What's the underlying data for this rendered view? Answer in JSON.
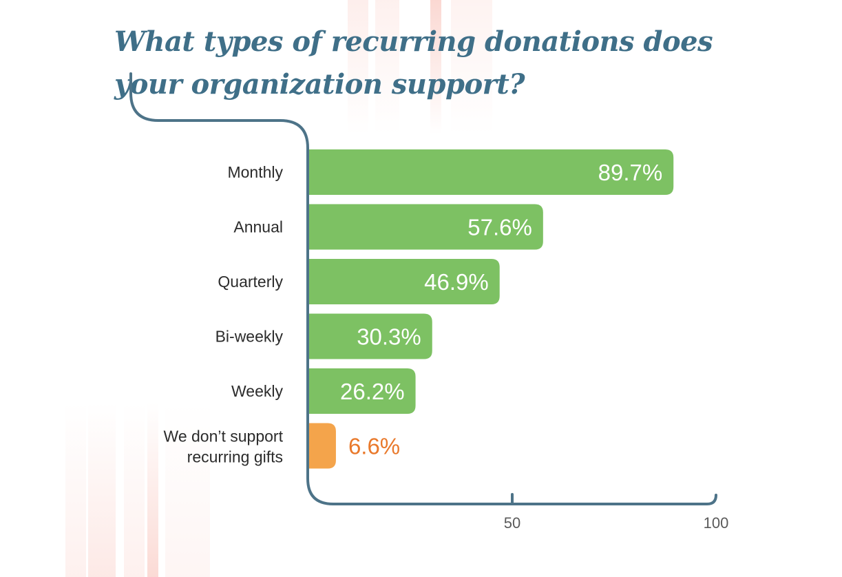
{
  "chart_data": {
    "type": "bar",
    "orientation": "horizontal",
    "title": "What types of recurring donations does your organization support?",
    "categories": [
      "Monthly",
      "Annual",
      "Quarterly",
      "Bi-weekly",
      "Weekly",
      "We don’t support recurring gifts"
    ],
    "values": [
      89.7,
      57.6,
      46.9,
      30.3,
      26.2,
      6.6
    ],
    "value_labels": [
      "89.7%",
      "57.6%",
      "46.9%",
      "30.3%",
      "26.2%",
      "6.6%"
    ],
    "x_ticks": [
      50,
      100
    ],
    "x_tick_labels": [
      "50",
      "100"
    ],
    "xlim": [
      0,
      100
    ],
    "grid": false,
    "legend": "none",
    "colors": {
      "bar": "#7dc163",
      "highlight_bar": "#f4a44b",
      "highlight_label": "#e9792b",
      "axis": "#4d7388",
      "title": "#3f6f88"
    }
  }
}
